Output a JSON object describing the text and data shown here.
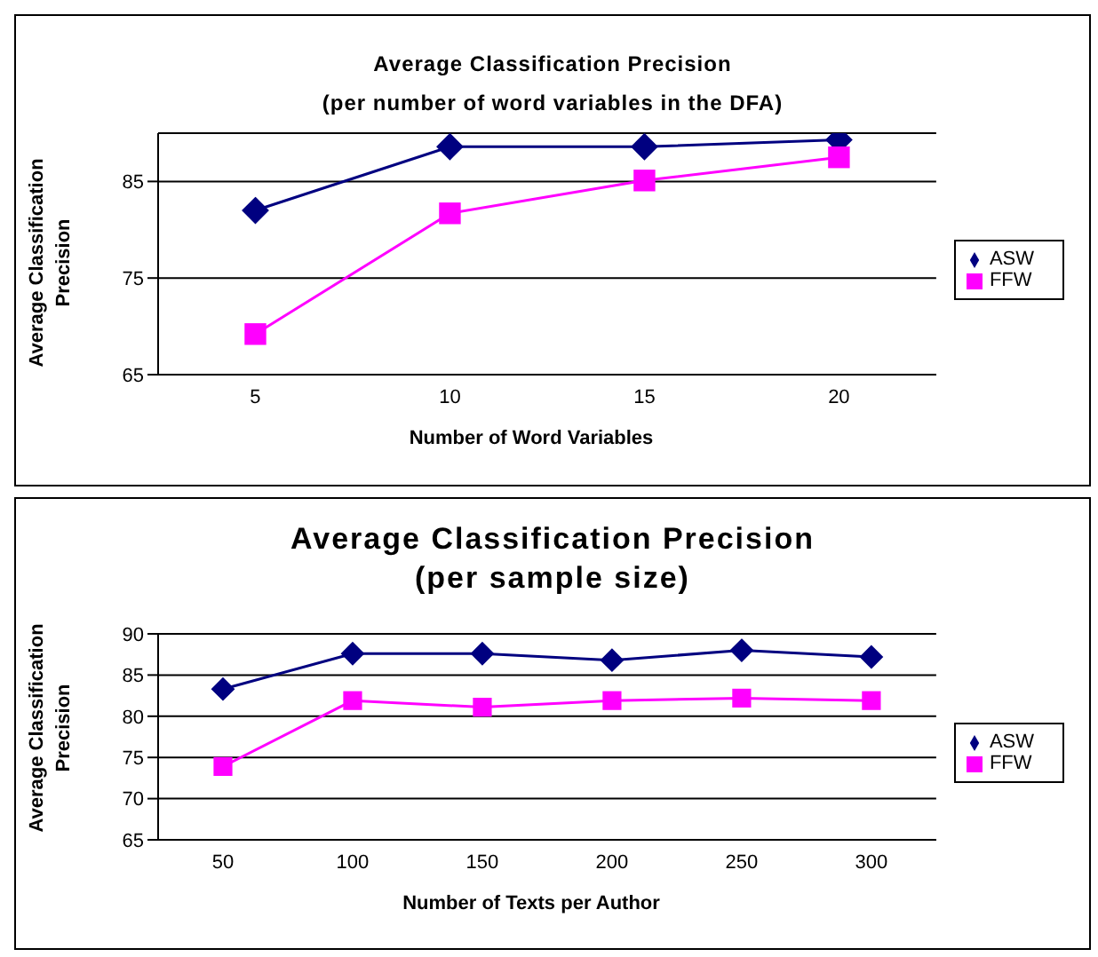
{
  "chart_data": [
    {
      "type": "line",
      "title": "Average Classification Precision",
      "subtitle": "(per number of word variables in the DFA)",
      "xlabel": "Number of Word Variables",
      "ylabel": "Average Classification Precision",
      "categories": [
        "5",
        "10",
        "15",
        "20"
      ],
      "ylim": [
        65,
        90
      ],
      "yticks": [
        65,
        75,
        85
      ],
      "grid": "y",
      "legend": "right",
      "series": [
        {
          "name": "ASW",
          "color": "#000080",
          "marker": "diamond",
          "values": [
            82.0,
            88.6,
            88.6,
            89.3
          ]
        },
        {
          "name": "FFW",
          "color": "#ff00ff",
          "marker": "square",
          "values": [
            69.2,
            81.7,
            85.1,
            87.5
          ]
        }
      ]
    },
    {
      "type": "line",
      "title": "Average Classification Precision",
      "subtitle": "(per sample size)",
      "xlabel": "Number of Texts per Author",
      "ylabel": "Average Classification Precision",
      "categories": [
        "50",
        "100",
        "150",
        "200",
        "250",
        "300"
      ],
      "ylim": [
        65,
        90
      ],
      "yticks": [
        65,
        70,
        75,
        80,
        85,
        90
      ],
      "grid": "y",
      "legend": "right",
      "series": [
        {
          "name": "ASW",
          "color": "#000080",
          "marker": "diamond",
          "values": [
            83.3,
            87.6,
            87.6,
            86.8,
            88.0,
            87.2
          ]
        },
        {
          "name": "FFW",
          "color": "#ff00ff",
          "marker": "square",
          "values": [
            73.9,
            81.9,
            81.1,
            81.9,
            82.2,
            81.9
          ]
        }
      ]
    }
  ]
}
